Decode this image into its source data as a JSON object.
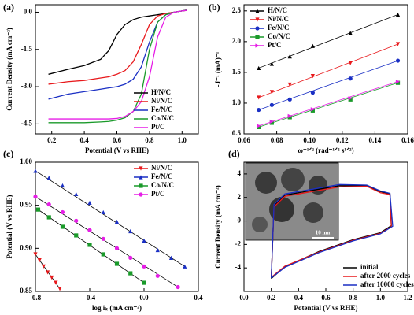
{
  "chart_data": [
    {
      "type": "line",
      "panel_label": "(a)",
      "xlabel": "Potential (V vs RHE)",
      "ylabel": "Current Density (mA cm⁻²)",
      "xlim": [
        0.1,
        1.1
      ],
      "xticks": [
        0.2,
        0.4,
        0.6,
        0.8,
        {
          "value": 1,
          "label": "1.0"
        }
      ],
      "ylim": [
        -4.9,
        0.3
      ],
      "yticks": [
        {
          "value": 0,
          "label": "0.0"
        },
        -1.5,
        {
          "value": -3,
          "label": "-3.0"
        },
        -4.5
      ],
      "legend": "lower right",
      "x": [
        0.18,
        0.3,
        0.4,
        0.5,
        0.55,
        0.6,
        0.65,
        0.7,
        0.75,
        0.8,
        0.85,
        0.9,
        0.95,
        1.0,
        1.03
      ],
      "series": [
        {
          "name": "H/N/C",
          "color": "#000000",
          "values": [
            -2.5,
            -2.3,
            -2.15,
            -1.9,
            -1.55,
            -0.9,
            -0.5,
            -0.3,
            -0.2,
            -0.15,
            -0.1,
            -0.05,
            0.0,
            0.05,
            0.08
          ]
        },
        {
          "name": "Ni/N/C",
          "color": "#e8191c",
          "values": [
            -2.9,
            -2.8,
            -2.75,
            -2.65,
            -2.6,
            -2.5,
            -2.35,
            -2.0,
            -1.3,
            -0.5,
            -0.15,
            -0.05,
            0.0,
            0.05,
            0.07
          ]
        },
        {
          "name": "Fe/N/C",
          "color": "#1a2fc4",
          "values": [
            -3.5,
            -3.3,
            -3.2,
            -3.1,
            -3.05,
            -3.0,
            -2.9,
            -2.7,
            -2.2,
            -1.2,
            -0.4,
            -0.1,
            0.0,
            0.05,
            0.08
          ]
        },
        {
          "name": "Co/N/C",
          "color": "#1a9a2a",
          "values": [
            -4.45,
            -4.45,
            -4.45,
            -4.42,
            -4.4,
            -4.35,
            -4.25,
            -4.0,
            -3.3,
            -1.5,
            -0.4,
            -0.1,
            0.0,
            0.05,
            0.1
          ]
        },
        {
          "name": "Pt/C",
          "color": "#e61ee6",
          "values": [
            -4.3,
            -4.3,
            -4.3,
            -4.3,
            -4.3,
            -4.28,
            -4.2,
            -4.0,
            -3.6,
            -2.6,
            -1.0,
            -0.2,
            0.0,
            0.05,
            0.08
          ]
        }
      ]
    },
    {
      "type": "scatter",
      "panel_label": "(b)",
      "xlabel": "ω⁻¹ᐟ² (rad⁻¹ᐟ² s¹ᐟ²)",
      "ylabel": "-J⁻¹ (mA)⁻¹",
      "xlim": [
        0.06,
        0.16
      ],
      "xticks": [
        0.06,
        0.08,
        {
          "value": 0.1,
          "label": "0.10"
        },
        0.12,
        0.14,
        0.16
      ],
      "ylim": [
        0.5,
        2.6
      ],
      "yticks": [
        0.5,
        {
          "value": 1,
          "label": "1.0"
        },
        1.5,
        {
          "value": 2,
          "label": "2.0"
        },
        2.5
      ],
      "legend": "upper left",
      "x": [
        0.069,
        0.077,
        0.088,
        0.102,
        0.125,
        0.154
      ],
      "series": [
        {
          "name": "H/N/C",
          "color": "#000000",
          "marker": "triangle-up",
          "values": [
            1.57,
            1.64,
            1.76,
            1.93,
            2.14,
            2.44
          ]
        },
        {
          "name": "Ni/N/C",
          "color": "#e8191c",
          "marker": "triangle-down",
          "values": [
            1.09,
            1.18,
            1.3,
            1.44,
            1.65,
            1.96
          ]
        },
        {
          "name": "Fe/N/C",
          "color": "#1a2fc4",
          "marker": "circle",
          "values": [
            0.89,
            0.97,
            1.06,
            1.17,
            1.4,
            1.69
          ]
        },
        {
          "name": "Co/N/C",
          "color": "#1a9a2a",
          "marker": "square",
          "values": [
            0.61,
            0.68,
            0.77,
            0.88,
            1.06,
            1.33
          ]
        },
        {
          "name": "Pt/C",
          "color": "#e61ee6",
          "marker": "triangle-right",
          "values": [
            0.63,
            0.7,
            0.79,
            0.9,
            1.08,
            1.35
          ]
        }
      ]
    },
    {
      "type": "scatter",
      "panel_label": "(c)",
      "xlabel": "log iₖ (mA cm⁻²)",
      "ylabel": "Potential (V vs RHE)",
      "xlim": [
        -0.8,
        0.4
      ],
      "xticks": [
        -0.8,
        -0.4,
        {
          "value": 0,
          "label": "0.0"
        },
        0.4
      ],
      "ylim": [
        0.85,
        1.0
      ],
      "yticks": [
        0.85,
        {
          "value": 0.9,
          "label": "0.90"
        },
        0.95,
        {
          "value": 1,
          "label": "1.00"
        }
      ],
      "legend": "upper right",
      "fit_color": "#000000",
      "series": [
        {
          "name": "Ni/N/C",
          "color": "#e8191c",
          "marker": "triangle-down",
          "x": [
            -0.8,
            -0.77,
            -0.74,
            -0.71,
            -0.68,
            -0.65,
            -0.62
          ],
          "values": [
            0.893,
            0.886,
            0.879,
            0.872,
            0.866,
            0.86,
            0.853
          ]
        },
        {
          "name": "Fe/N/C",
          "color": "#1a2fc4",
          "marker": "triangle-up",
          "x": [
            -0.8,
            -0.7,
            -0.6,
            -0.5,
            -0.4,
            -0.3,
            -0.2,
            -0.1,
            0.0,
            0.1,
            0.2,
            0.3
          ],
          "values": [
            0.99,
            0.982,
            0.973,
            0.963,
            0.953,
            0.942,
            0.931,
            0.92,
            0.909,
            0.898,
            0.889,
            0.879
          ]
        },
        {
          "name": "Co/N/C",
          "color": "#1a9a2a",
          "marker": "square",
          "x": [
            -0.78,
            -0.7,
            -0.6,
            -0.5,
            -0.4,
            -0.3,
            -0.2,
            -0.1,
            0.0
          ],
          "values": [
            0.945,
            0.936,
            0.925,
            0.915,
            0.904,
            0.893,
            0.882,
            0.871,
            0.86
          ]
        },
        {
          "name": "Pt/C",
          "color": "#e61ee6",
          "marker": "circle",
          "x": [
            -0.8,
            -0.7,
            -0.6,
            -0.5,
            -0.4,
            -0.3,
            -0.2,
            -0.1,
            0.0,
            0.1,
            0.25
          ],
          "values": [
            0.96,
            0.951,
            0.942,
            0.932,
            0.921,
            0.911,
            0.9,
            0.889,
            0.879,
            0.868,
            0.855
          ]
        }
      ]
    },
    {
      "type": "line",
      "panel_label": "(d)",
      "xlabel": "Potential (V vs RHE)",
      "ylabel": "Current Density (mA cm⁻²)",
      "xlim": [
        0,
        1.2
      ],
      "xticks": [
        {
          "value": 0,
          "label": "0.0"
        },
        0.2,
        0.4,
        0.6,
        0.8,
        {
          "value": 1,
          "label": "1.0"
        },
        1.2
      ],
      "ylim": [
        -6,
        5
      ],
      "yticks": [
        -4,
        -2,
        0,
        2,
        4
      ],
      "legend": "lower right",
      "inset_label": "10 nm",
      "series": [
        {
          "name": "initial",
          "color": "#000000",
          "x": [
            0.2,
            0.22,
            0.3,
            0.5,
            0.7,
            0.9,
            1.0,
            1.07,
            1.08,
            1.0,
            0.8,
            0.55,
            0.3,
            0.2
          ],
          "values": [
            -4.9,
            1.3,
            2.2,
            2.6,
            3.0,
            3.0,
            2.5,
            2.3,
            -0.4,
            -1.0,
            -1.6,
            -2.6,
            -3.9,
            -4.9
          ]
        },
        {
          "name": "after 2000 cycles",
          "color": "#e8191c",
          "x": [
            0.2,
            0.22,
            0.3,
            0.5,
            0.7,
            0.9,
            1.0,
            1.07,
            1.08,
            1.0,
            0.8,
            0.55,
            0.3,
            0.2
          ],
          "values": [
            -4.8,
            1.2,
            2.1,
            2.5,
            2.9,
            2.95,
            2.4,
            2.25,
            -0.5,
            -1.05,
            -1.65,
            -2.65,
            -3.85,
            -4.8
          ]
        },
        {
          "name": "after 10000 cycles",
          "color": "#1a2fc4",
          "x": [
            0.2,
            0.22,
            0.3,
            0.5,
            0.7,
            0.9,
            1.0,
            1.07,
            1.09,
            1.0,
            0.8,
            0.55,
            0.3,
            0.2
          ],
          "values": [
            -4.85,
            1.4,
            2.3,
            2.7,
            3.1,
            3.05,
            2.55,
            2.35,
            -0.45,
            -1.1,
            -1.7,
            -2.7,
            -3.95,
            -4.85
          ]
        }
      ]
    }
  ]
}
